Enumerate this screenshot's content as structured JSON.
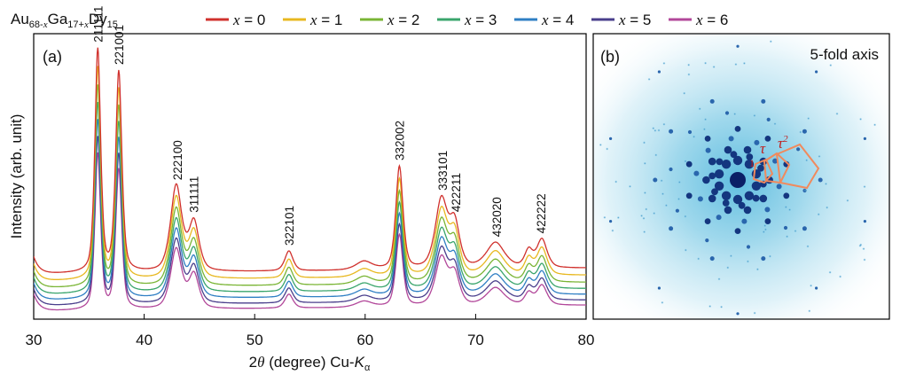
{
  "chart_data": [
    {
      "panel": "(a)",
      "type": "line",
      "title": "",
      "legend_title": {
        "base1": "Au",
        "sub1": "68-",
        "sub1_var": "x",
        "base2": "Ga",
        "sub2": "17+",
        "sub2_var": "x",
        "base3": "Dy",
        "sub3": "15"
      },
      "legend_position": "top",
      "ylabel": "Intensity (arb. unit)",
      "xlabel": {
        "pre": "2",
        "theta": "θ",
        "mid": " (degree) Cu-",
        "K": "K",
        "alpha": "α"
      },
      "xlim": [
        30,
        80
      ],
      "ylim": [
        0,
        1
      ],
      "x_ticks": [
        30,
        40,
        50,
        60,
        70,
        80
      ],
      "grid": false,
      "series": [
        {
          "name": "x = 0",
          "var": "x",
          "label": " = 0",
          "color": "#d0312d",
          "offset": 0.14
        },
        {
          "name": "x = 1",
          "var": "x",
          "label": " = 1",
          "color": "#e8b820",
          "offset": 0.115
        },
        {
          "name": "x = 2",
          "var": "x",
          "label": " = 2",
          "color": "#7ab535",
          "offset": 0.09
        },
        {
          "name": "x = 3",
          "var": "x",
          "label": " = 3",
          "color": "#3aa56c",
          "offset": 0.068
        },
        {
          "name": "x = 4",
          "var": "x",
          "label": " = 4",
          "color": "#2f7fc4",
          "offset": 0.048
        },
        {
          "name": "x = 5",
          "var": "x",
          "label": " = 5",
          "color": "#4a3f8c",
          "offset": 0.028
        },
        {
          "name": "x = 6",
          "var": "x",
          "label": " = 6",
          "color": "#b2479a",
          "offset": 0.01
        }
      ],
      "peaks": [
        {
          "x": 35.8,
          "h": 0.78,
          "w": 0.28
        },
        {
          "x": 37.7,
          "h": 0.7,
          "w": 0.3
        },
        {
          "x": 42.9,
          "h": 0.3,
          "w": 0.55
        },
        {
          "x": 44.5,
          "h": 0.17,
          "w": 0.5
        },
        {
          "x": 53.1,
          "h": 0.07,
          "w": 0.4
        },
        {
          "x": 59.9,
          "h": 0.03,
          "w": 0.8
        },
        {
          "x": 63.1,
          "h": 0.36,
          "w": 0.35
        },
        {
          "x": 66.9,
          "h": 0.24,
          "w": 0.6
        },
        {
          "x": 68.1,
          "h": 0.15,
          "w": 0.5
        },
        {
          "x": 71.8,
          "h": 0.09,
          "w": 0.9
        },
        {
          "x": 74.8,
          "h": 0.06,
          "w": 0.4
        },
        {
          "x": 76.0,
          "h": 0.1,
          "w": 0.5
        }
      ],
      "annotations": [
        {
          "x": 35.8,
          "text": "211111"
        },
        {
          "x": 37.7,
          "text": "221001"
        },
        {
          "x": 43.0,
          "text": "222100"
        },
        {
          "x": 44.5,
          "text": "311111"
        },
        {
          "x": 53.1,
          "text": "322101"
        },
        {
          "x": 63.1,
          "text": "332002"
        },
        {
          "x": 67.0,
          "text": "333101"
        },
        {
          "x": 68.2,
          "text": "422211"
        },
        {
          "x": 71.9,
          "text": "432020"
        },
        {
          "x": 75.9,
          "text": "422222"
        }
      ]
    },
    {
      "panel": "(b)",
      "type": "image",
      "description_label": "5-fold axis",
      "annot_one": "1",
      "annot_tau": "τ",
      "annot_tau2": "τ",
      "annot_tau2_exp": "2",
      "colors": {
        "spot": "#1a3f8f",
        "glow": "#4fb6dc",
        "pentagon": "#f08a5d",
        "label": "#c0201e"
      }
    }
  ]
}
